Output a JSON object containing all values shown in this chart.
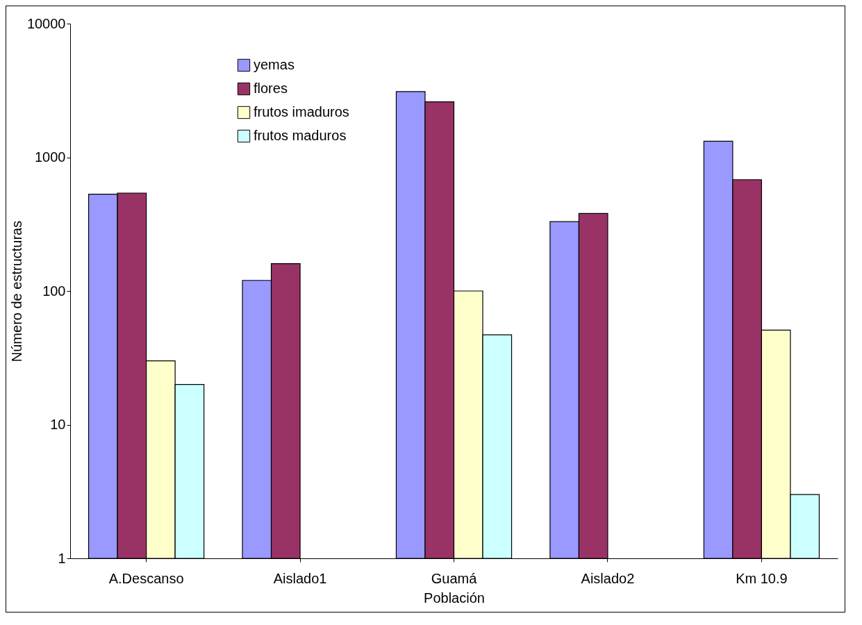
{
  "chart_data": {
    "type": "bar",
    "xlabel": "Población",
    "ylabel": "Número de estructuras",
    "categories": [
      "A.Descanso",
      "Aislado1",
      "Guamá",
      "Aislado2",
      "Km 10.9"
    ],
    "series": [
      {
        "name": "yemas",
        "color": "#9999ff",
        "values": [
          530,
          120,
          3100,
          330,
          1320
        ]
      },
      {
        "name": "flores",
        "color": "#993366",
        "values": [
          540,
          160,
          2600,
          380,
          680
        ]
      },
      {
        "name": "frutos imaduros",
        "color": "#ffffcc",
        "values": [
          30,
          null,
          100,
          null,
          51
        ]
      },
      {
        "name": "frutos maduros",
        "color": "#ccffff",
        "values": [
          20,
          null,
          47,
          null,
          3
        ]
      }
    ],
    "log": true,
    "ylim": [
      1,
      10000
    ],
    "yticks": [
      1,
      10,
      100,
      1000,
      10000
    ],
    "grid": false,
    "legend": "top left"
  }
}
